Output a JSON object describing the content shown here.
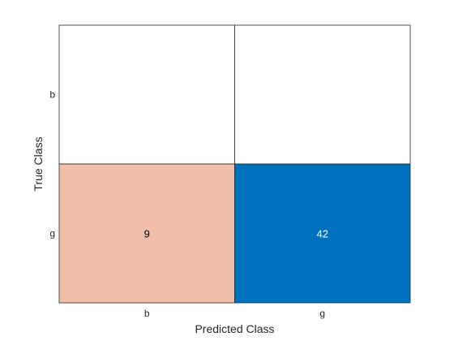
{
  "chart_data": {
    "type": "heatmap",
    "title": "",
    "xlabel": "Predicted Class",
    "ylabel": "True Class",
    "row_labels": [
      "b",
      "g"
    ],
    "col_labels": [
      "b",
      "g"
    ],
    "values": [
      [
        null,
        null
      ],
      [
        9,
        42
      ]
    ],
    "grid": true,
    "colors": {
      "correct": "#0072BD",
      "incorrect": "#F2BFAA",
      "empty": "#FFFFFF",
      "border": "#262626",
      "text_on_dark": "#FFFFFF",
      "text_on_light": "#000000"
    }
  }
}
